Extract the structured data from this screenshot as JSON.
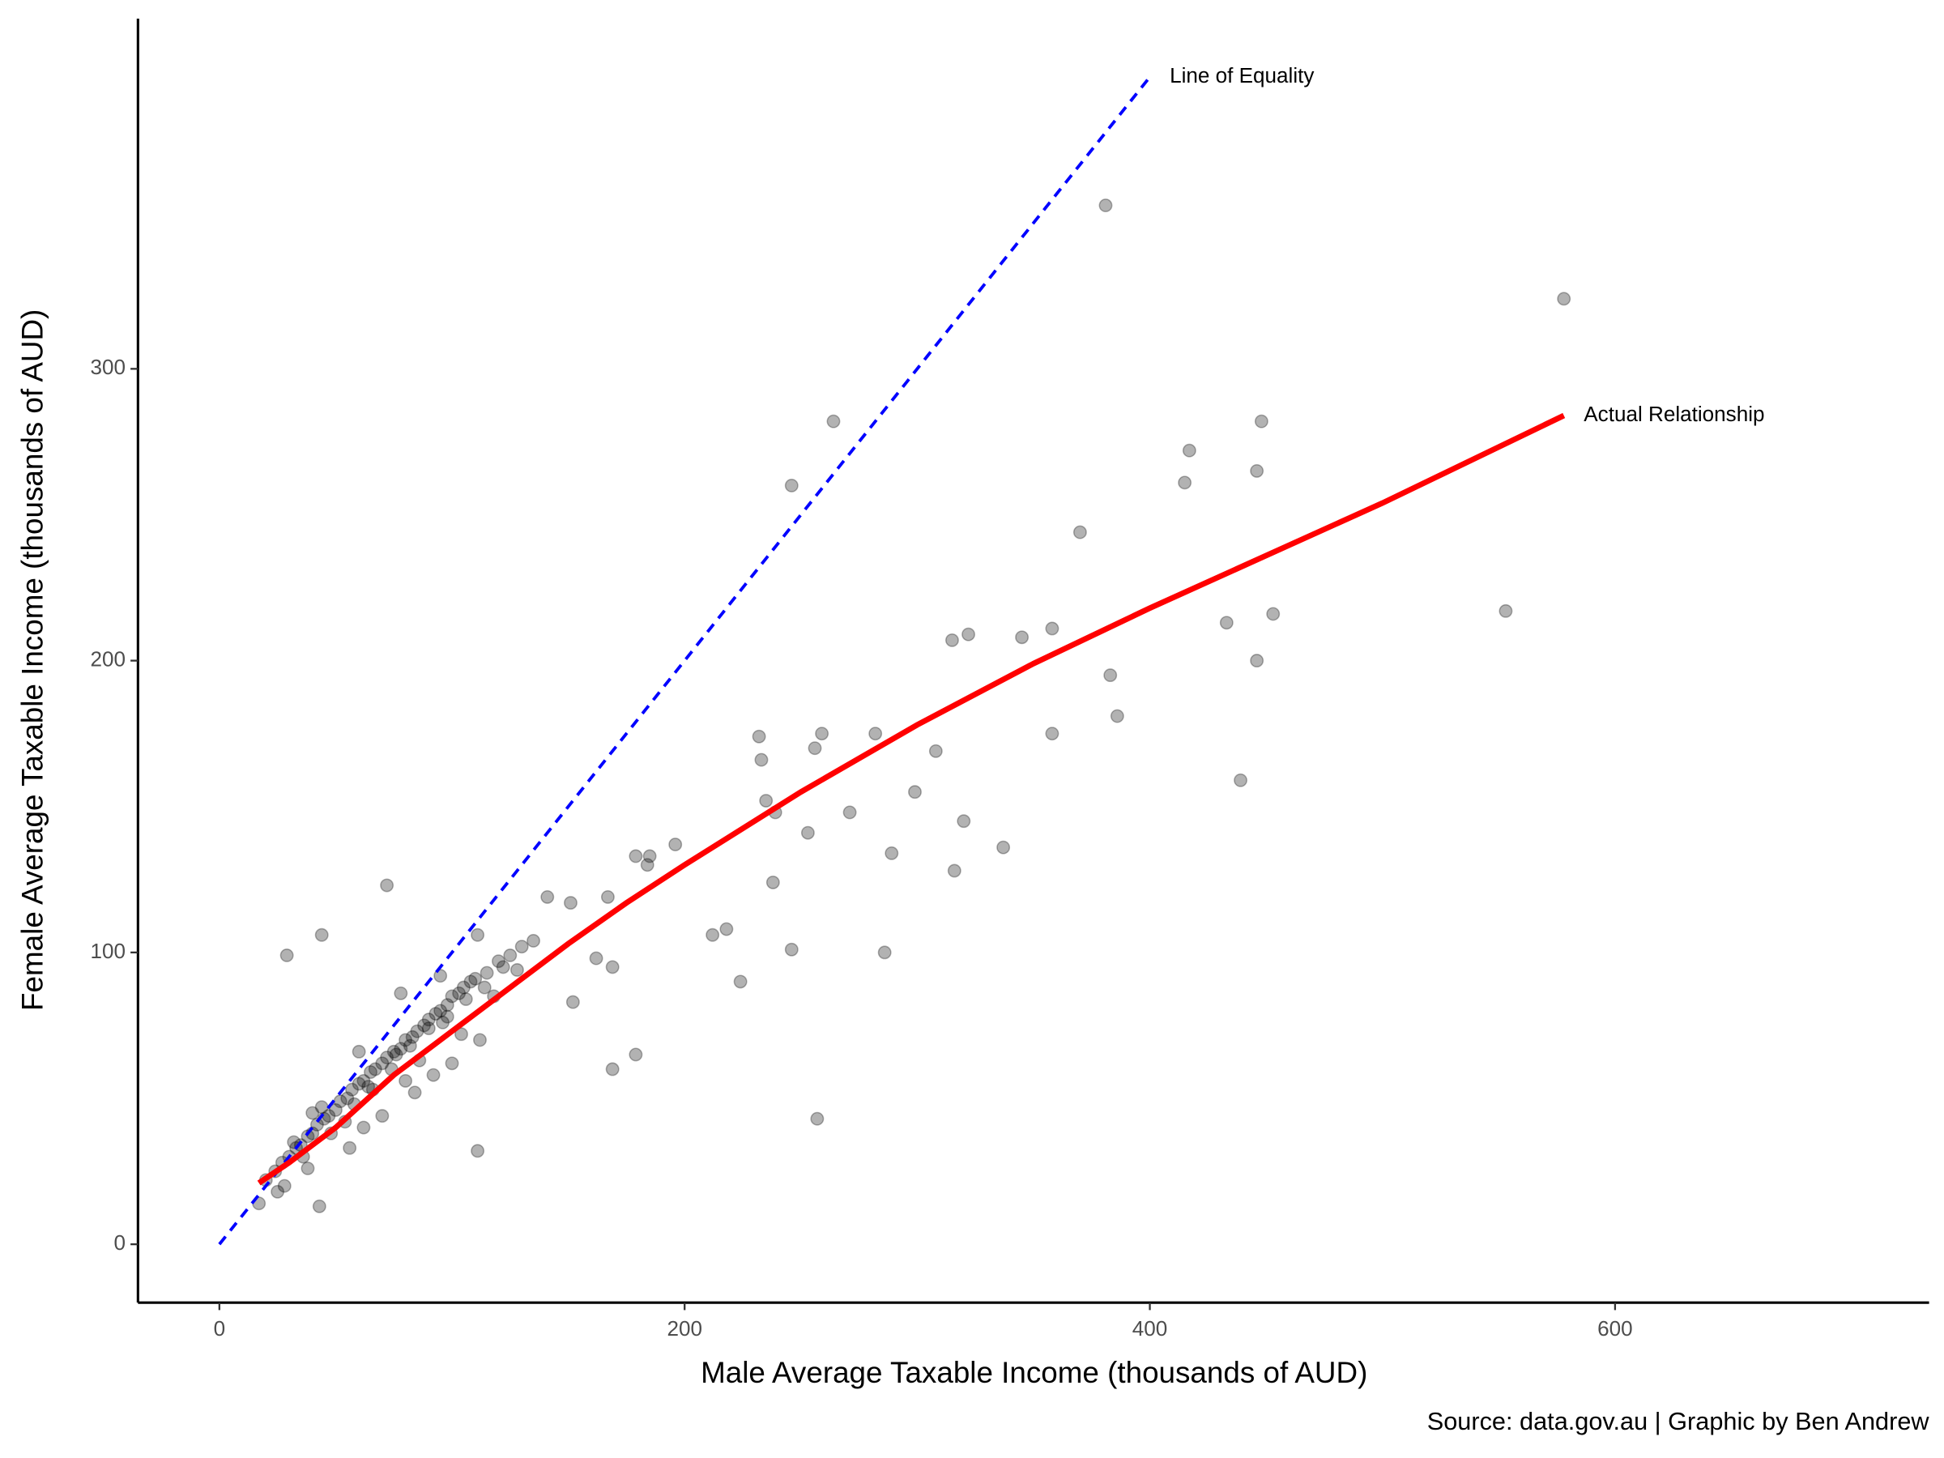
{
  "chart_data": {
    "type": "scatter",
    "x_label": "Male Average Taxable Income (thousands of AUD)",
    "y_label": "Female Average Taxable Income (thousands of AUD)",
    "caption": "Source: data.gov.au | Graphic by Ben Andrew",
    "xlim": [
      -35,
      735
    ],
    "ylim": [
      -20,
      420
    ],
    "xticks": [
      0,
      200,
      400,
      600
    ],
    "yticks": [
      0,
      100,
      200,
      300
    ],
    "grid": false,
    "point_color": "#000000",
    "point_opacity": 0.3,
    "points": {
      "x": [
        381,
        578,
        264,
        448,
        246,
        417,
        415,
        446,
        370,
        553,
        433,
        453,
        315,
        322,
        345,
        358,
        383,
        446,
        232,
        233,
        259,
        256,
        282,
        308,
        358,
        386,
        439,
        235,
        299,
        239,
        271,
        253,
        320,
        289,
        337,
        316,
        238,
        196,
        179,
        185,
        184,
        212,
        218,
        246,
        286,
        224,
        257,
        179,
        169,
        72,
        44,
        29,
        111,
        169,
        152,
        167,
        141,
        151,
        162,
        111,
        43,
        17,
        20,
        24,
        27,
        30,
        33,
        35,
        38,
        40,
        42,
        45,
        47,
        50,
        52,
        55,
        57,
        60,
        62,
        65,
        67,
        70,
        72,
        75,
        78,
        80,
        83,
        85,
        88,
        90,
        93,
        95,
        98,
        100,
        103,
        105,
        108,
        110,
        115,
        120,
        125,
        130,
        135,
        28,
        36,
        48,
        58,
        66,
        74,
        82,
        90,
        98,
        106,
        114,
        122,
        32,
        44,
        54,
        64,
        76,
        86,
        96,
        104,
        118,
        128,
        40,
        62,
        80,
        92,
        25,
        38,
        56,
        70,
        84,
        100,
        112,
        60,
        78,
        95
      ],
      "y": [
        356,
        324,
        282,
        282,
        260,
        272,
        261,
        265,
        244,
        217,
        213,
        216,
        207,
        209,
        208,
        211,
        195,
        200,
        174,
        166,
        175,
        170,
        175,
        169,
        175,
        181,
        159,
        152,
        155,
        148,
        148,
        141,
        145,
        134,
        136,
        128,
        124,
        137,
        133,
        133,
        130,
        106,
        108,
        101,
        100,
        90,
        43,
        65,
        60,
        123,
        106,
        99,
        32,
        95,
        83,
        119,
        119,
        117,
        98,
        106,
        13,
        14,
        22,
        25,
        28,
        30,
        33,
        34,
        37,
        38,
        41,
        43,
        44,
        46,
        49,
        50,
        53,
        55,
        56,
        59,
        60,
        62,
        64,
        66,
        67,
        70,
        71,
        73,
        75,
        77,
        79,
        80,
        82,
        85,
        86,
        88,
        90,
        91,
        93,
        97,
        99,
        102,
        104,
        20,
        30,
        38,
        48,
        53,
        60,
        68,
        74,
        78,
        84,
        88,
        95,
        35,
        47,
        42,
        54,
        65,
        63,
        76,
        72,
        85,
        94,
        45,
        40,
        56,
        58,
        18,
        26,
        33,
        44,
        52,
        62,
        70,
        66,
        86,
        92
      ]
    },
    "lines": [
      {
        "label": "Line of Equality",
        "color": "#0000ff",
        "dashed": true,
        "width": 2.5,
        "x": [
          0,
          400
        ],
        "y": [
          0,
          400
        ]
      },
      {
        "label": "Actual Relationship",
        "color": "#ff0000",
        "dashed": false,
        "width": 4.5,
        "x": [
          17,
          30,
          50,
          75,
          100,
          125,
          150,
          175,
          200,
          250,
          300,
          350,
          400,
          450,
          500,
          578
        ],
        "y": [
          21,
          28,
          40,
          58,
          73,
          88,
          103,
          117,
          130,
          155,
          178,
          199,
          218,
          236,
          254,
          284
        ]
      }
    ]
  }
}
